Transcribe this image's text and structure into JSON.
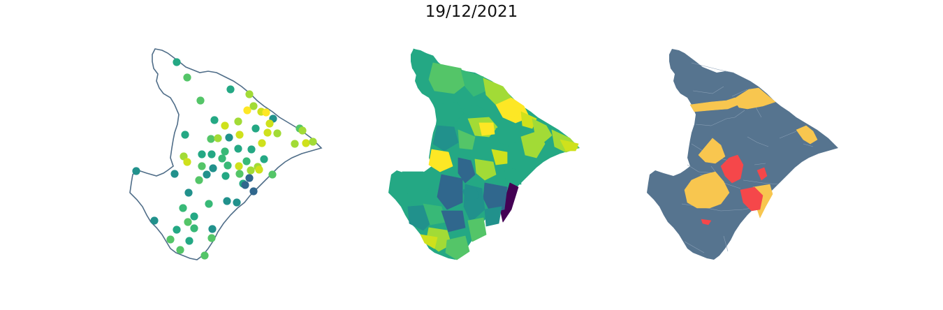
{
  "title": "19/12/2021",
  "colors": {
    "outline": "#4f6d88",
    "choropleth_base": "#56748f",
    "highlight_yellow": "#f8c64f",
    "highlight_red": "#f5474a",
    "boundary": "#8aa0b6",
    "viridis": [
      "#440154",
      "#30678d",
      "#21918c",
      "#24a884",
      "#38b977",
      "#54c568",
      "#a2db36",
      "#cfe11c",
      "#fde725"
    ]
  },
  "panels": [
    {
      "name": "station-points",
      "type": "point-map"
    },
    {
      "name": "municipality-choropleth",
      "type": "choropleth"
    },
    {
      "name": "category-highlight",
      "type": "categorical-choropleth"
    }
  ]
}
